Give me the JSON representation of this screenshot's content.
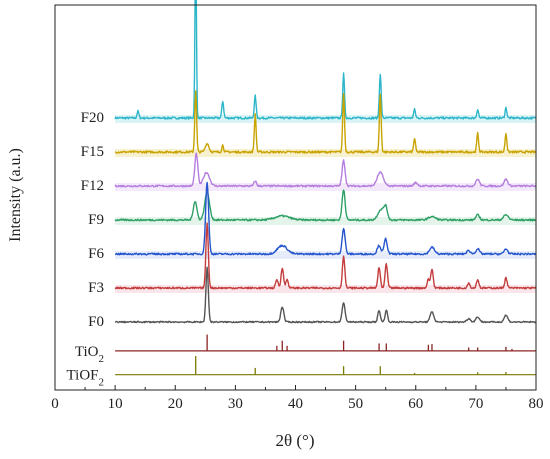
{
  "chart_data": {
    "type": "line",
    "title": "",
    "xlabel": "2θ (°)",
    "ylabel": "Intensity (a.u.)",
    "xlim": [
      0,
      80
    ],
    "x_ticks": [
      "0",
      "10",
      "20",
      "30",
      "40",
      "50",
      "60",
      "70",
      "80"
    ],
    "grid": false,
    "legend": "none",
    "series": [
      {
        "name": "F20",
        "color": "#2db6c9",
        "baseline": 8.0,
        "noise": 0.06,
        "highlight": "#b9e9ef",
        "peaks": [
          [
            13.8,
            0.2,
            0.15
          ],
          [
            23.4,
            5.0,
            0.12
          ],
          [
            27.9,
            0.5,
            0.15
          ],
          [
            33.3,
            0.65,
            0.15
          ],
          [
            48.0,
            1.3,
            0.15
          ],
          [
            54.1,
            1.3,
            0.15
          ],
          [
            59.8,
            0.25,
            0.15
          ],
          [
            70.3,
            0.25,
            0.15
          ],
          [
            75.0,
            0.3,
            0.15
          ]
        ]
      },
      {
        "name": "F15",
        "color": "#c9a300",
        "baseline": 7.0,
        "noise": 0.06,
        "highlight": "#f3e6a8",
        "peaks": [
          [
            23.4,
            1.8,
            0.15
          ],
          [
            25.3,
            0.25,
            0.3
          ],
          [
            27.9,
            0.2,
            0.15
          ],
          [
            33.3,
            1.1,
            0.15
          ],
          [
            48.0,
            1.7,
            0.15
          ],
          [
            54.1,
            1.7,
            0.15
          ],
          [
            59.8,
            0.4,
            0.15
          ],
          [
            70.3,
            0.55,
            0.15
          ],
          [
            75.0,
            0.55,
            0.15
          ]
        ]
      },
      {
        "name": "F12",
        "color": "#b57ede",
        "baseline": 6.0,
        "noise": 0.05,
        "highlight": "#ead7f7",
        "peaks": [
          [
            23.5,
            0.95,
            0.25
          ],
          [
            25.2,
            0.4,
            0.5
          ],
          [
            33.3,
            0.15,
            0.2
          ],
          [
            48.0,
            0.75,
            0.25
          ],
          [
            54.1,
            0.4,
            0.5
          ],
          [
            60.0,
            0.1,
            0.3
          ],
          [
            70.3,
            0.2,
            0.3
          ],
          [
            75.0,
            0.2,
            0.3
          ]
        ]
      },
      {
        "name": "F9",
        "color": "#2ea066",
        "baseline": 5.0,
        "noise": 0.05,
        "highlight": "#cdebd9",
        "peaks": [
          [
            23.3,
            0.55,
            0.3
          ],
          [
            25.3,
            0.8,
            0.4
          ],
          [
            37.8,
            0.12,
            1.2
          ],
          [
            48.0,
            0.9,
            0.25
          ],
          [
            54.2,
            0.3,
            0.5
          ],
          [
            55.0,
            0.35,
            0.3
          ],
          [
            62.7,
            0.1,
            0.6
          ],
          [
            70.3,
            0.15,
            0.3
          ],
          [
            75.0,
            0.15,
            0.4
          ]
        ]
      },
      {
        "name": "F6",
        "color": "#2455cc",
        "baseline": 4.0,
        "noise": 0.05,
        "highlight": "#d2dcf5",
        "peaks": [
          [
            25.3,
            2.1,
            0.25
          ],
          [
            37.8,
            0.25,
            0.8
          ],
          [
            48.0,
            0.75,
            0.25
          ],
          [
            53.9,
            0.25,
            0.3
          ],
          [
            55.0,
            0.45,
            0.25
          ],
          [
            62.7,
            0.2,
            0.4
          ],
          [
            68.8,
            0.1,
            0.3
          ],
          [
            70.3,
            0.15,
            0.3
          ],
          [
            75.0,
            0.15,
            0.3
          ]
        ]
      },
      {
        "name": "F3",
        "color": "#c43c3c",
        "baseline": 3.0,
        "noise": 0.05,
        "highlight": "#f6cfd9",
        "peaks": [
          [
            25.3,
            1.9,
            0.2
          ],
          [
            36.9,
            0.25,
            0.2
          ],
          [
            37.8,
            0.6,
            0.2
          ],
          [
            38.6,
            0.25,
            0.2
          ],
          [
            48.0,
            0.95,
            0.2
          ],
          [
            53.9,
            0.6,
            0.2
          ],
          [
            55.1,
            0.7,
            0.2
          ],
          [
            62.1,
            0.25,
            0.2
          ],
          [
            62.7,
            0.55,
            0.2
          ],
          [
            68.8,
            0.15,
            0.2
          ],
          [
            70.3,
            0.25,
            0.2
          ],
          [
            75.0,
            0.3,
            0.2
          ]
        ]
      },
      {
        "name": "F0",
        "color": "#555555",
        "baseline": 2.0,
        "noise": 0.04,
        "highlight": "",
        "peaks": [
          [
            25.3,
            1.6,
            0.2
          ],
          [
            37.8,
            0.45,
            0.25
          ],
          [
            48.0,
            0.55,
            0.25
          ],
          [
            53.9,
            0.35,
            0.2
          ],
          [
            55.1,
            0.35,
            0.2
          ],
          [
            62.7,
            0.3,
            0.3
          ],
          [
            68.8,
            0.1,
            0.3
          ],
          [
            70.3,
            0.15,
            0.3
          ],
          [
            75.0,
            0.2,
            0.3
          ]
        ]
      }
    ],
    "references": [
      {
        "name": "TiO2",
        "name_base": "TiO",
        "name_sub": "2",
        "color": "#8b2323",
        "baseline": 1.15,
        "sticks": [
          [
            25.3,
            0.48
          ],
          [
            36.9,
            0.15
          ],
          [
            37.8,
            0.3
          ],
          [
            38.6,
            0.15
          ],
          [
            48.0,
            0.3
          ],
          [
            53.9,
            0.22
          ],
          [
            55.1,
            0.22
          ],
          [
            62.1,
            0.18
          ],
          [
            62.7,
            0.2
          ],
          [
            68.8,
            0.1
          ],
          [
            70.3,
            0.1
          ],
          [
            75.0,
            0.12
          ],
          [
            76.0,
            0.06
          ]
        ]
      },
      {
        "name": "TiOF2",
        "name_base": "TiOF",
        "name_sub": "2",
        "color": "#7a7a00",
        "baseline": 0.45,
        "sticks": [
          [
            23.4,
            0.55
          ],
          [
            33.3,
            0.2
          ],
          [
            48.0,
            0.25
          ],
          [
            54.1,
            0.25
          ],
          [
            59.8,
            0.05
          ],
          [
            70.3,
            0.07
          ],
          [
            75.0,
            0.08
          ]
        ]
      }
    ]
  }
}
